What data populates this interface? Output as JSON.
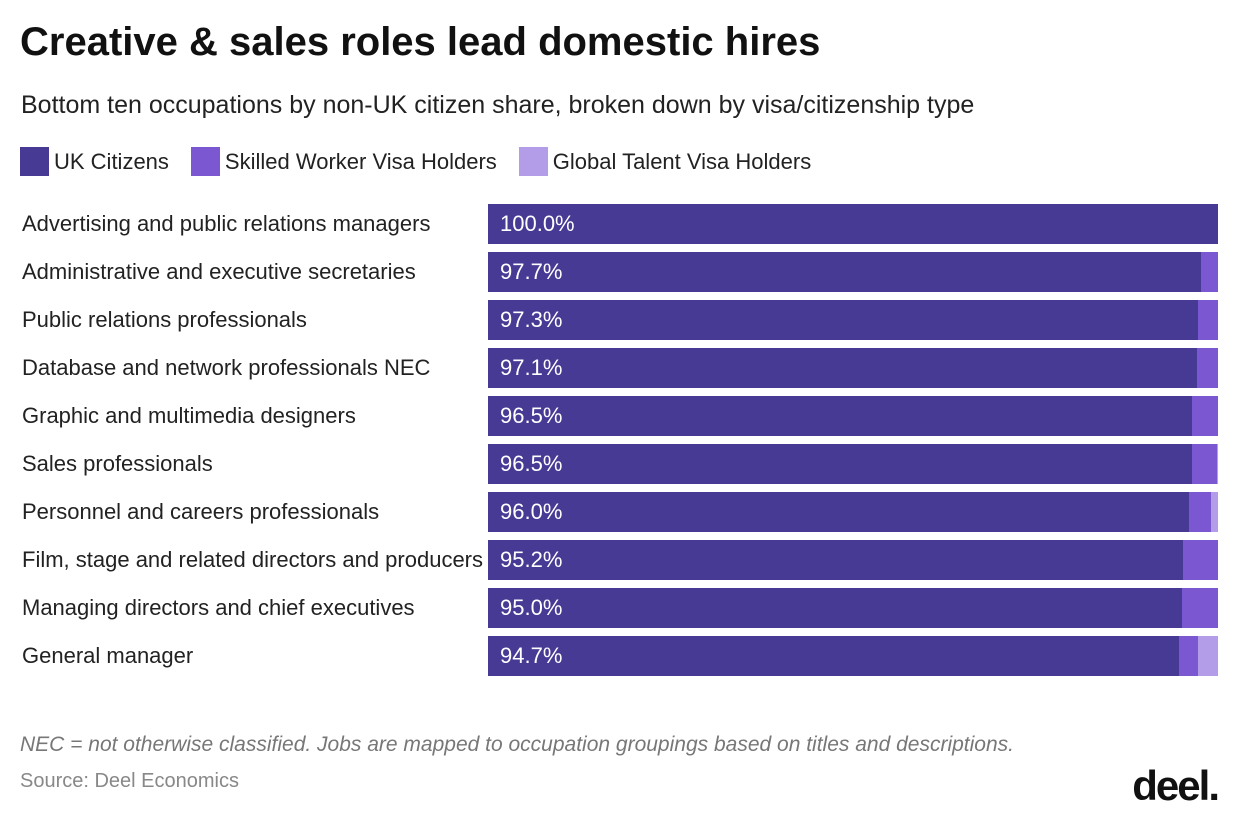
{
  "chart_data": {
    "type": "stacked-bar-horizontal",
    "title": "Creative & sales roles lead domestic hires",
    "subtitle": "Bottom ten occupations by non-UK citizen share, broken down by visa/citizenship type",
    "categories": [
      "Advertising and public relations managers",
      "Administrative and executive secretaries",
      "Public relations professionals",
      "Database and network professionals NEC",
      "Graphic and multimedia designers",
      "Sales professionals",
      "Personnel and careers professionals",
      "Film, stage and related directors and producers",
      "Managing directors and chief executives",
      "General manager"
    ],
    "series": [
      {
        "name": "UK Citizens",
        "color": "#473a94",
        "values": [
          100.0,
          97.7,
          97.3,
          97.1,
          96.5,
          96.5,
          96.0,
          95.2,
          95.0,
          94.7
        ],
        "value_labels": [
          "100.0%",
          "97.7%",
          "97.3%",
          "97.1%",
          "96.5%",
          "96.5%",
          "96.0%",
          "95.2%",
          "95.0%",
          "94.7%"
        ]
      },
      {
        "name": "Skilled Worker Visa Holders",
        "color": "#7b57d2",
        "values": [
          0,
          2.3,
          2.7,
          2.9,
          3.5,
          3.3,
          3.0,
          4.8,
          5.0,
          2.5
        ]
      },
      {
        "name": "Global Talent Visa Holders",
        "color": "#b39de9",
        "values": [
          0,
          0,
          0,
          0,
          0,
          0.2,
          1.0,
          0,
          0,
          2.8
        ]
      }
    ],
    "xlim": [
      0,
      100
    ],
    "note": "NEC = not otherwise classified. Jobs are mapped to occupation groupings based on titles and descriptions.",
    "source": "Source: Deel Economics",
    "logo": "deel."
  }
}
